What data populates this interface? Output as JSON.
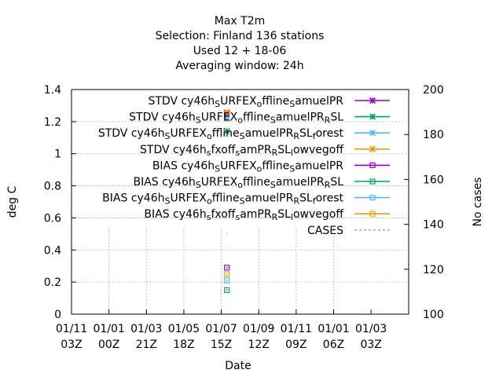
{
  "chart_data": {
    "type": "scatter",
    "title_lines": [
      "Max T2m",
      "Selection: Finland     136 stations",
      "Used  12 + 18-06",
      "Averaging window: 24h"
    ],
    "xlabel": "Date",
    "ylabel": "deg C",
    "y2label": "No cases",
    "ylim": [
      0,
      1.4
    ],
    "y2lim": [
      100,
      200
    ],
    "y_ticks": [
      "0",
      "0.2",
      "0.4",
      "0.6",
      "0.8",
      "1",
      "1.2",
      "1.4"
    ],
    "y2_ticks": [
      "100",
      "120",
      "140",
      "160",
      "180",
      "200"
    ],
    "x_ticks": [
      {
        "line1": "01/11",
        "line2": "03Z"
      },
      {
        "line1": "01/01",
        "line2": "00Z"
      },
      {
        "line1": "01/03",
        "line2": "21Z"
      },
      {
        "line1": "01/05",
        "line2": "18Z"
      },
      {
        "line1": "01/07",
        "line2": "15Z"
      },
      {
        "line1": "01/09",
        "line2": "12Z"
      },
      {
        "line1": "01/11",
        "line2": "09Z"
      },
      {
        "line1": "01/01",
        "line2": "06Z"
      },
      {
        "line1": "01/03",
        "line2": "03Z"
      }
    ],
    "x_index_range": [
      0,
      9
    ],
    "point_x_index": 4.15,
    "series": [
      {
        "name_parts": [
          [
            "STDV cy46h",
            ""
          ],
          [
            "S",
            "sub"
          ],
          [
            "URFEX",
            ""
          ],
          [
            "o",
            "sub"
          ],
          [
            "ffline",
            ""
          ],
          [
            "S",
            "sub"
          ],
          [
            "amuelPR",
            ""
          ]
        ],
        "color": "#9400d3",
        "marker": "x",
        "value": 1.25
      },
      {
        "name_parts": [
          [
            "STDV cy46h",
            ""
          ],
          [
            "S",
            "sub"
          ],
          [
            "URFEX",
            ""
          ],
          [
            "o",
            "sub"
          ],
          [
            "ffline",
            ""
          ],
          [
            "S",
            "sub"
          ],
          [
            "amuelPR",
            ""
          ],
          [
            "R",
            "sub"
          ],
          [
            "SL",
            ""
          ]
        ],
        "color": "#009e73",
        "marker": "x",
        "value": 1.14
      },
      {
        "name_parts": [
          [
            "STDV cy46h",
            ""
          ],
          [
            "S",
            "sub"
          ],
          [
            "URFEX",
            ""
          ],
          [
            "o",
            "sub"
          ],
          [
            "ffline",
            ""
          ],
          [
            "S",
            "sub"
          ],
          [
            "amuelPR",
            ""
          ],
          [
            "R",
            "sub"
          ],
          [
            "SL",
            ""
          ],
          [
            "f",
            "sub"
          ],
          [
            "orest",
            ""
          ]
        ],
        "color": "#56b4e9",
        "marker": "x",
        "value": 1.22
      },
      {
        "name_parts": [
          [
            "STDV cy46h",
            ""
          ],
          [
            "s",
            "sub"
          ],
          [
            "fxoff",
            ""
          ],
          [
            "s",
            "sub"
          ],
          [
            "amPR",
            ""
          ],
          [
            "R",
            "sub"
          ],
          [
            "SL",
            ""
          ],
          [
            "l",
            "sub"
          ],
          [
            "owvegoff",
            ""
          ]
        ],
        "color": "#e69f00",
        "marker": "x",
        "value": 1.26
      },
      {
        "name_parts": [
          [
            "BIAS cy46h",
            ""
          ],
          [
            "S",
            "sub"
          ],
          [
            "URFEX",
            ""
          ],
          [
            "o",
            "sub"
          ],
          [
            "ffline",
            ""
          ],
          [
            "S",
            "sub"
          ],
          [
            "amuelPR",
            ""
          ]
        ],
        "color": "#9400d3",
        "marker": "square",
        "value": 0.29
      },
      {
        "name_parts": [
          [
            "BIAS cy46h",
            ""
          ],
          [
            "S",
            "sub"
          ],
          [
            "URFEX",
            ""
          ],
          [
            "o",
            "sub"
          ],
          [
            "ffline",
            ""
          ],
          [
            "S",
            "sub"
          ],
          [
            "amuelPR",
            ""
          ],
          [
            "R",
            "sub"
          ],
          [
            "SL",
            ""
          ]
        ],
        "color": "#009e73",
        "marker": "square",
        "value": 0.15
      },
      {
        "name_parts": [
          [
            "BIAS cy46h",
            ""
          ],
          [
            "S",
            "sub"
          ],
          [
            "URFEX",
            ""
          ],
          [
            "o",
            "sub"
          ],
          [
            "ffline",
            ""
          ],
          [
            "S",
            "sub"
          ],
          [
            "amuelPR",
            ""
          ],
          [
            "R",
            "sub"
          ],
          [
            "SL",
            ""
          ],
          [
            "f",
            "sub"
          ],
          [
            "orest",
            ""
          ]
        ],
        "color": "#56b4e9",
        "marker": "square",
        "value": 0.21
      },
      {
        "name_parts": [
          [
            "BIAS cy46h",
            ""
          ],
          [
            "s",
            "sub"
          ],
          [
            "fxoff",
            ""
          ],
          [
            "s",
            "sub"
          ],
          [
            "amPR",
            ""
          ],
          [
            "R",
            "sub"
          ],
          [
            "SL",
            ""
          ],
          [
            "l",
            "sub"
          ],
          [
            "owvegoff",
            ""
          ]
        ],
        "color": "#e69f00",
        "marker": "square",
        "value": 0.25
      },
      {
        "name_parts": [
          [
            "CASES",
            ""
          ]
        ],
        "color": "#888888",
        "marker": "dash",
        "value": 136
      }
    ]
  }
}
